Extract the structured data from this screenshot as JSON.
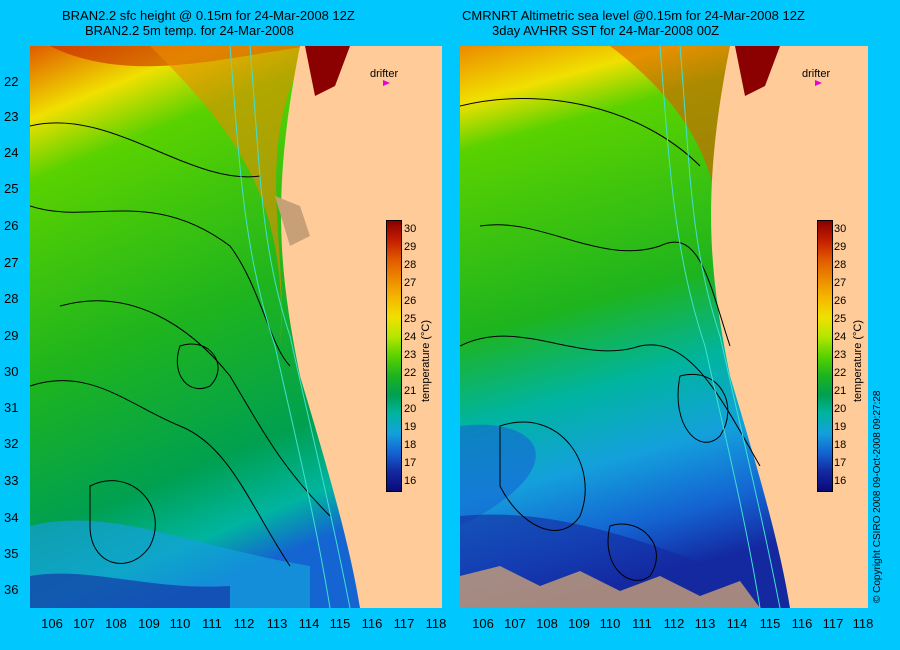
{
  "left_panel": {
    "title_line1": "BRAN2.2 sfc height @ 0.15m for 24-Mar-2008 12Z",
    "title_line2": "BRAN2.2 5m temp. for 24-Mar-2008"
  },
  "right_panel": {
    "title_line1": "CMRNRT Altimetric sea level  @0.15m  for 24-Mar-2008 12Z",
    "title_line2": "3day AVHRR SST for 24-Mar-2008 00Z"
  },
  "drifter_label": "drifter",
  "latitude_labels": [
    "22",
    "23",
    "24",
    "25",
    "26",
    "27",
    "28",
    "29",
    "30",
    "31",
    "32",
    "33",
    "34",
    "35",
    "36"
  ],
  "longitude_labels": [
    "106",
    "107",
    "108",
    "109",
    "110",
    "111",
    "112",
    "113",
    "114",
    "115",
    "116",
    "117",
    "118"
  ],
  "colorbar": {
    "title": "temperature (°C)",
    "ticks": [
      "30",
      "29",
      "28",
      "27",
      "26",
      "25",
      "24",
      "23",
      "22",
      "21",
      "20",
      "19",
      "18",
      "17",
      "16"
    ],
    "colors": [
      "#8b0000",
      "#c41e00",
      "#e05a00",
      "#ec8a00",
      "#f5b800",
      "#f0e000",
      "#b4e600",
      "#5ad200",
      "#1eb41e",
      "#00a050",
      "#00b4a0",
      "#14a0dc",
      "#1464d2",
      "#1428a0",
      "#0a0a78"
    ]
  },
  "colors": {
    "background": "#00c8ff",
    "land": "#ffcc99",
    "missing": "#c8a078",
    "contour": "#000000",
    "bathymetry": "#40e0d0",
    "drifter_marker": "#e000e0"
  },
  "copyright": "© Copyright CSIRO 2008    09-Oct-2008 09:27:28"
}
